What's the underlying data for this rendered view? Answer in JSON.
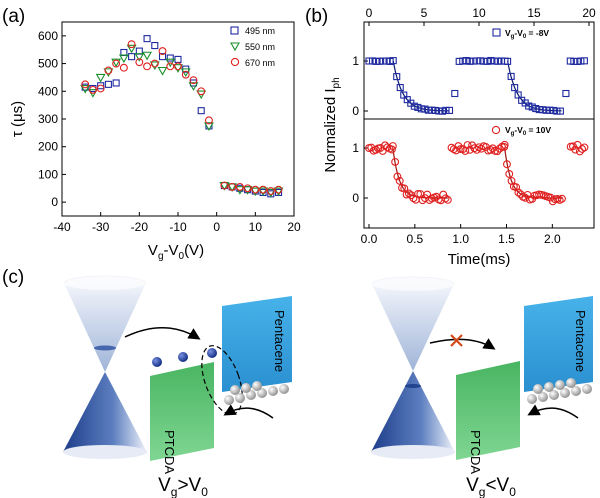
{
  "panel_labels": {
    "a": "(a)",
    "b": "(b)",
    "c": "(c)"
  },
  "chart_data": [
    {
      "type": "scatter",
      "panel": "(a)",
      "xlabel_main": "V",
      "xlabel_sub1": "g",
      "xlabel_mid": "-V",
      "xlabel_sub2": "0",
      "xlabel_end": "(V)",
      "ylabel": "τ (μs)",
      "xlim": [
        -40,
        20
      ],
      "ylim": [
        -50,
        650
      ],
      "xticks": [
        "-40",
        "-30",
        "-20",
        "-10",
        "0",
        "10",
        "20"
      ],
      "yticks": [
        "0",
        "100",
        "200",
        "300",
        "400",
        "500",
        "600"
      ],
      "legend_position": "top-right",
      "series": [
        {
          "name": "495 nm",
          "marker": "square",
          "color": "#1f2aa0",
          "points": [
            [
              -34,
              415
            ],
            [
              -32,
              410
            ],
            [
              -30,
              420
            ],
            [
              -28,
              425
            ],
            [
              -26,
              430
            ],
            [
              -24,
              540
            ],
            [
              -22,
              525
            ],
            [
              -20,
              545
            ],
            [
              -18,
              590
            ],
            [
              -16,
              565
            ],
            [
              -14,
              525
            ],
            [
              -12,
              520
            ],
            [
              -10,
              515
            ],
            [
              -8,
              480
            ],
            [
              -6,
              430
            ],
            [
              -4,
              330
            ],
            [
              -2,
              275
            ],
            [
              2,
              60
            ],
            [
              4,
              55
            ],
            [
              6,
              50
            ],
            [
              8,
              45
            ],
            [
              10,
              40
            ],
            [
              12,
              35
            ],
            [
              14,
              30
            ],
            [
              16,
              35
            ]
          ]
        },
        {
          "name": "550 nm",
          "marker": "triangle-down",
          "color": "#1a8f2a",
          "points": [
            [
              -34,
              410
            ],
            [
              -32,
              395
            ],
            [
              -30,
              450
            ],
            [
              -28,
              470
            ],
            [
              -26,
              505
            ],
            [
              -24,
              520
            ],
            [
              -22,
              555
            ],
            [
              -20,
              525
            ],
            [
              -18,
              530
            ],
            [
              -16,
              495
            ],
            [
              -14,
              475
            ],
            [
              -12,
              505
            ],
            [
              -10,
              485
            ],
            [
              -8,
              470
            ],
            [
              -6,
              420
            ],
            [
              -4,
              390
            ],
            [
              -2,
              275
            ],
            [
              2,
              60
            ],
            [
              4,
              55
            ],
            [
              6,
              45
            ],
            [
              8,
              45
            ],
            [
              10,
              40
            ],
            [
              12,
              40
            ],
            [
              14,
              35
            ],
            [
              16,
              40
            ]
          ]
        },
        {
          "name": "670 nm",
          "marker": "circle",
          "color": "#e02020",
          "points": [
            [
              -34,
              425
            ],
            [
              -32,
              405
            ],
            [
              -30,
              410
            ],
            [
              -28,
              475
            ],
            [
              -26,
              500
            ],
            [
              -24,
              485
            ],
            [
              -22,
              570
            ],
            [
              -20,
              505
            ],
            [
              -18,
              490
            ],
            [
              -16,
              500
            ],
            [
              -14,
              545
            ],
            [
              -12,
              490
            ],
            [
              -10,
              490
            ],
            [
              -8,
              460
            ],
            [
              -6,
              440
            ],
            [
              -4,
              400
            ],
            [
              -2,
              295
            ],
            [
              2,
              60
            ],
            [
              4,
              55
            ],
            [
              6,
              55
            ],
            [
              8,
              50
            ],
            [
              10,
              45
            ],
            [
              12,
              45
            ],
            [
              14,
              40
            ],
            [
              16,
              45
            ]
          ]
        }
      ]
    },
    {
      "type": "line",
      "panel": "(b)",
      "xlabel": "Time(ms)",
      "ylabel_main": "Normalized I",
      "ylabel_sub": "ph",
      "top_xlim": [
        0,
        20
      ],
      "top_xticks": [
        "0",
        "5",
        "10",
        "15",
        "20"
      ],
      "bottom_xlim": [
        0,
        2.4
      ],
      "bottom_xticks": [
        "0.0",
        "0.5",
        "1.0",
        "1.5",
        "2.0"
      ],
      "ylim": [
        -0.2,
        1.5
      ],
      "yticks": [
        "0",
        "1"
      ],
      "series": [
        {
          "name": "V_g-V_0 = -8V",
          "legend_main": "V",
          "legend_sub1": "g",
          "legend_mid": "-V",
          "legend_sub2": "0",
          "legend_end": " = -8V",
          "marker": "square",
          "color": "#1f2aa0",
          "x_axis": "top",
          "segments": [
            {
              "t0": 0,
              "t1": 2.2,
              "level": 1
            },
            {
              "t0": 2.2,
              "t1": 7.4,
              "level": 0,
              "decay_start": 2.2
            },
            {
              "t0": 8.2,
              "t1": 12.6,
              "level": 1
            },
            {
              "t0": 12.6,
              "t1": 17.6,
              "level": 0,
              "decay_start": 12.6
            },
            {
              "t0": 18.3,
              "t1": 19.6,
              "level": 1
            }
          ],
          "outliers": [
            [
              7.8,
              0.35
            ],
            [
              17.9,
              0.35
            ]
          ]
        },
        {
          "name": "V_g-V_0 = 10V",
          "legend_main": "V",
          "legend_sub1": "g",
          "legend_mid": "-V",
          "legend_sub2": "0",
          "legend_end": " = 10V",
          "marker": "circle",
          "color": "#e02020",
          "x_axis": "bottom",
          "segments": [
            {
              "t0": 0,
              "t1": 0.26,
              "level": 1
            },
            {
              "t0": 0.26,
              "t1": 0.86,
              "level": 0,
              "decay_start": 0.26
            },
            {
              "t0": 0.9,
              "t1": 1.48,
              "level": 1
            },
            {
              "t0": 1.48,
              "t1": 2.12,
              "level": 0,
              "decay_start": 1.48
            },
            {
              "t0": 2.2,
              "t1": 2.36,
              "level": 1
            }
          ]
        }
      ]
    }
  ],
  "diagram": {
    "left": {
      "material_low": "PTCDA",
      "material_high": "Pentacene",
      "caption_main": "V",
      "caption_sub1": "g",
      "caption_op": ">V",
      "caption_sub2": "0"
    },
    "right": {
      "material_low": "PTCDA",
      "material_high": "Pentacene",
      "caption_main": "V",
      "caption_sub1": "g",
      "caption_op": "<V",
      "caption_sub2": "0"
    }
  }
}
